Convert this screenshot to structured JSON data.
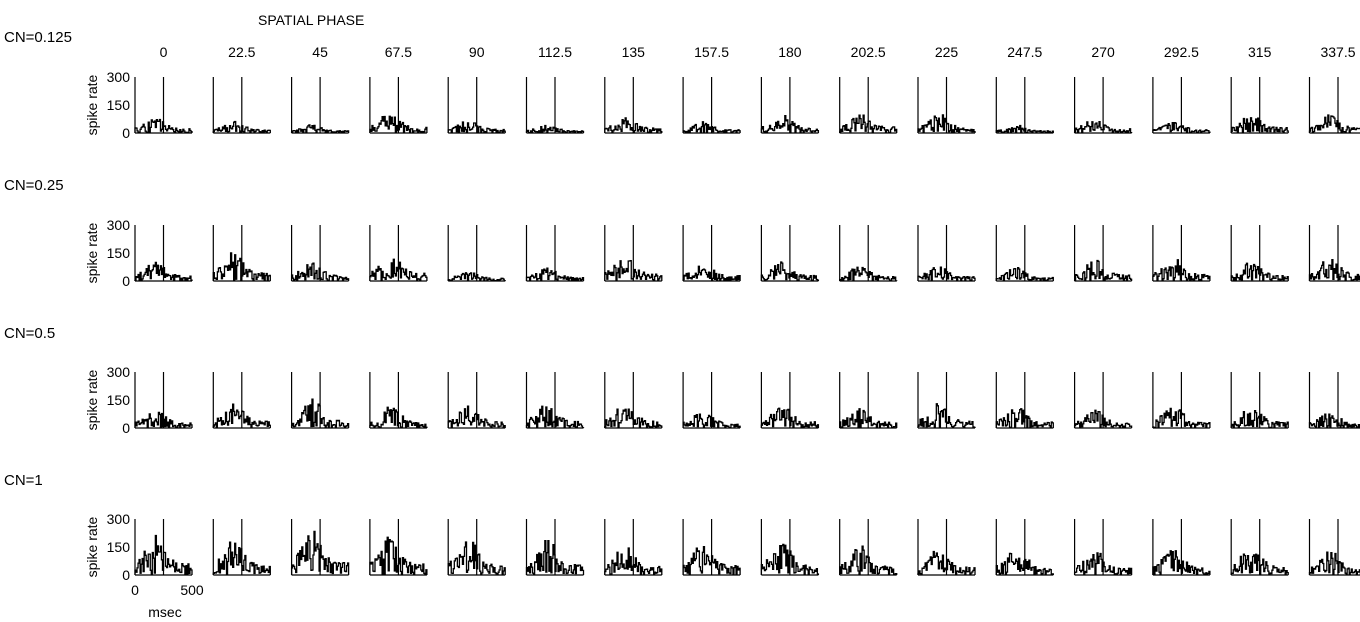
{
  "chart_data": {
    "type": "line",
    "title": "SPATIAL PHASE",
    "phases": [
      "0",
      "22.5",
      "45",
      "67.5",
      "90",
      "112.5",
      "135",
      "157.5",
      "180",
      "202.5",
      "225",
      "247.5",
      "270",
      "292.5",
      "315",
      "337.5"
    ],
    "ylabel": "spike rate",
    "yticks": [
      "300",
      "150",
      "0"
    ],
    "ylim": [
      0,
      300
    ],
    "xlabel": "msec",
    "xticks": [
      "0",
      "500"
    ],
    "xlim": [
      0,
      500
    ],
    "stimulus_marker_msec": 250,
    "rows": [
      {
        "label": "CN=0.125",
        "amplitude": 60,
        "mods": [
          0.9,
          0.7,
          0.5,
          1.3,
          0.8,
          0.5,
          1.2,
          0.7,
          1.1,
          1.3,
          1.2,
          0.5,
          0.9,
          0.7,
          1.2,
          1.1
        ]
      },
      {
        "label": "CN=0.25",
        "amplitude": 70,
        "mods": [
          1.0,
          1.5,
          1.0,
          1.5,
          0.5,
          0.7,
          1.3,
          1.0,
          1.0,
          0.8,
          0.8,
          0.7,
          1.1,
          1.2,
          1.0,
          1.2
        ]
      },
      {
        "label": "CN=0.5",
        "amplitude": 80,
        "mods": [
          0.8,
          1.1,
          1.3,
          1.0,
          1.0,
          1.1,
          1.1,
          0.8,
          1.0,
          0.9,
          1.1,
          1.0,
          0.8,
          1.0,
          1.0,
          0.7
        ]
      },
      {
        "label": "CN=1",
        "amplitude": 110,
        "mods": [
          1.3,
          1.2,
          1.5,
          1.3,
          1.2,
          1.2,
          1.0,
          1.1,
          1.1,
          1.0,
          0.9,
          0.9,
          0.8,
          0.9,
          1.0,
          0.8
        ]
      }
    ],
    "grid": false,
    "legend": "none"
  }
}
